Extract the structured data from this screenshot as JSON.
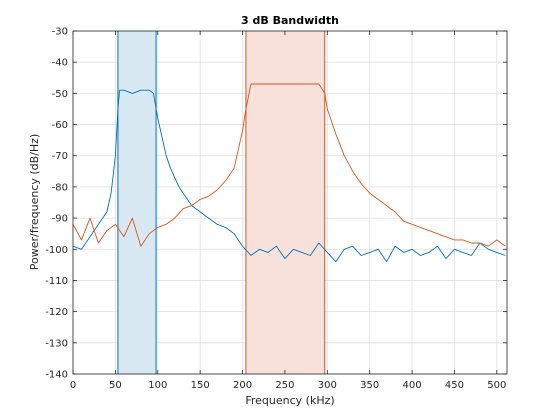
{
  "chart_data": {
    "type": "line",
    "title": "3 dB Bandwidth",
    "xlabel": "Frequency (kHz)",
    "ylabel": "Power/frequency (dB/Hz)",
    "xlim": [
      0,
      512
    ],
    "ylim": [
      -140,
      -30
    ],
    "xticks": [
      0,
      50,
      100,
      150,
      200,
      250,
      300,
      350,
      400,
      450,
      500
    ],
    "yticks": [
      -140,
      -130,
      -120,
      -110,
      -100,
      -90,
      -80,
      -70,
      -60,
      -50,
      -40,
      -30
    ],
    "grid": true,
    "bands": [
      {
        "x_start": 53,
        "x_end": 98,
        "fill": "#d9e9f4",
        "edge": "#0072bd"
      },
      {
        "x_start": 204,
        "x_end": 297,
        "fill": "#f7e1da",
        "edge": "#d95319"
      }
    ],
    "series": [
      {
        "color": "#0072bd",
        "x": [
          0,
          10,
          20,
          30,
          40,
          45,
          50,
          53,
          55,
          60,
          70,
          80,
          90,
          95,
          98,
          100,
          105,
          110,
          115,
          120,
          125,
          130,
          140,
          150,
          160,
          170,
          180,
          190,
          200,
          210,
          220,
          230,
          240,
          250,
          260,
          270,
          280,
          290,
          300,
          310,
          320,
          330,
          340,
          350,
          360,
          370,
          380,
          390,
          400,
          410,
          420,
          430,
          440,
          450,
          460,
          470,
          480,
          490,
          500,
          510
        ],
        "y": [
          -99,
          -100,
          -96,
          -92,
          -88,
          -82,
          -70,
          -55,
          -49,
          -49,
          -50,
          -49,
          -49,
          -50,
          -55,
          -58,
          -64,
          -70,
          -74,
          -77,
          -80,
          -82,
          -86,
          -88,
          -90,
          -92,
          -93,
          -95,
          -99,
          -102,
          -100,
          -101,
          -99,
          -103,
          -100,
          -101,
          -102,
          -98,
          -101,
          -104,
          -100,
          -99,
          -102,
          -101,
          -100,
          -104,
          -99,
          -101,
          -100,
          -102,
          -101,
          -99,
          -103,
          -100,
          -101,
          -102,
          -98,
          -100,
          -101,
          -102
        ]
      },
      {
        "color": "#d95319",
        "x": [
          0,
          10,
          20,
          30,
          40,
          50,
          60,
          70,
          80,
          90,
          100,
          110,
          120,
          130,
          140,
          150,
          160,
          170,
          180,
          190,
          200,
          204,
          210,
          220,
          230,
          240,
          250,
          260,
          270,
          280,
          290,
          297,
          300,
          310,
          320,
          330,
          340,
          350,
          360,
          370,
          380,
          390,
          400,
          410,
          420,
          430,
          440,
          450,
          460,
          470,
          480,
          490,
          500,
          510
        ],
        "y": [
          -92,
          -97,
          -90,
          -98,
          -94,
          -92,
          -96,
          -90,
          -99,
          -95,
          -93,
          -92,
          -90,
          -87,
          -86,
          -84,
          -83,
          -81,
          -78,
          -74,
          -62,
          -55,
          -47,
          -47,
          -47,
          -47,
          -47,
          -47,
          -47,
          -47,
          -47,
          -50,
          -55,
          -63,
          -70,
          -75,
          -79,
          -82,
          -84,
          -86,
          -88,
          -91,
          -92,
          -93,
          -94,
          -95,
          -96,
          -97,
          -97,
          -98,
          -98,
          -99,
          -97,
          -99
        ]
      }
    ]
  }
}
